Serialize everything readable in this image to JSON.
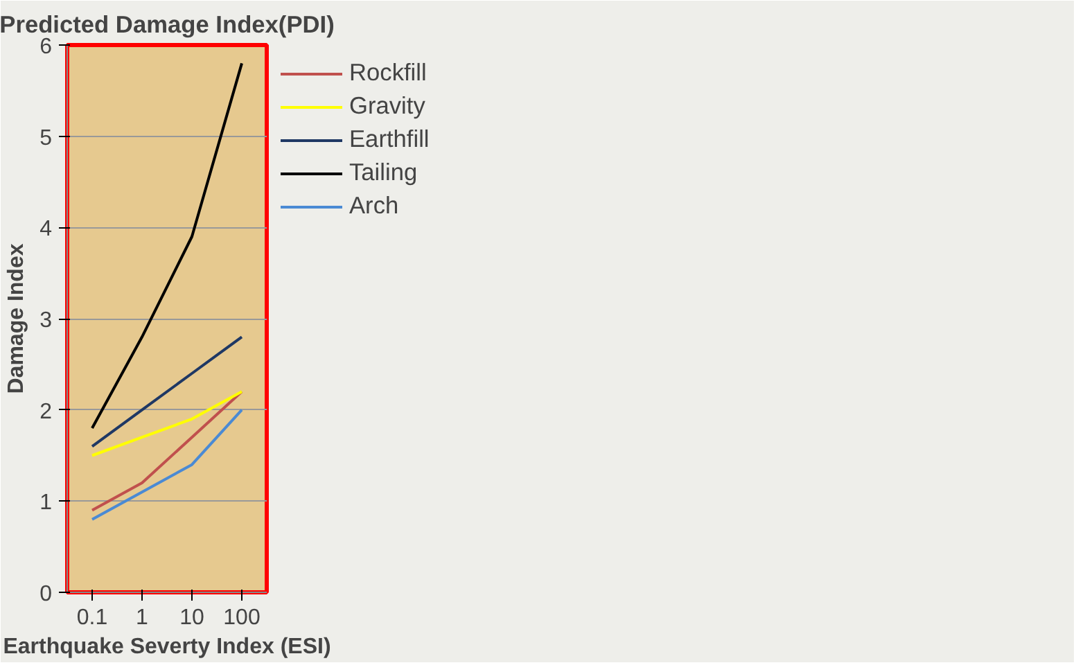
{
  "chart_data": {
    "type": "line",
    "title": "Predicted Damage Index(PDI)",
    "xlabel": "Earthquake Severty Index (ESI)",
    "ylabel": "Damage Index",
    "categories": [
      "0.1",
      "1",
      "10",
      "100"
    ],
    "series": [
      {
        "name": "Rockfill",
        "color": "#c0504d",
        "values": [
          0.9,
          1.2,
          1.7,
          2.2
        ]
      },
      {
        "name": "Gravity",
        "color": "#ffff00",
        "values": [
          1.5,
          1.7,
          1.9,
          2.2
        ]
      },
      {
        "name": "Earthfill",
        "color": "#1f3864",
        "values": [
          1.6,
          2.0,
          2.4,
          2.8
        ]
      },
      {
        "name": "Tailing",
        "color": "#000000",
        "values": [
          1.8,
          2.8,
          3.9,
          5.8
        ]
      },
      {
        "name": "Arch",
        "color": "#4a8ad4",
        "values": [
          0.8,
          1.1,
          1.4,
          2.0
        ]
      }
    ],
    "ylim": [
      0,
      6
    ],
    "yticks": [
      0,
      1,
      2,
      3,
      4,
      5,
      6
    ],
    "grid": "y",
    "legend": "right",
    "marker": "none",
    "line_style": "solid"
  }
}
